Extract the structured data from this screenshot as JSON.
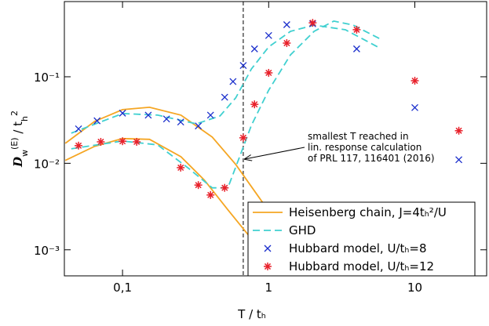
{
  "chart_data": {
    "type": "line",
    "xlabel": "T / tₕ",
    "ylabel": [
      {
        "text": "D",
        "shift": "base"
      },
      {
        "text": "w",
        "shift": "sub"
      },
      {
        "text": "(E)",
        "shift": "super"
      },
      {
        "text": " / t",
        "shift": "base"
      },
      {
        "text": "h",
        "shift": "sub"
      },
      {
        "text": "2",
        "shift": "super"
      }
    ],
    "xscale": "log",
    "yscale": "log",
    "xlim": [
      0.04,
      31
    ],
    "ylim": [
      0.0005,
      0.74
    ],
    "xticks": [
      {
        "value": 0.1,
        "label": "0,1"
      },
      1,
      10
    ],
    "yticks": [
      {
        "value": 0.001,
        "label": "10⁻³"
      },
      {
        "value": 0.01,
        "label": "10⁻²"
      },
      {
        "value": 0.1,
        "label": "10⁻¹"
      }
    ],
    "legend": "lower right",
    "vline": 0.67,
    "annotation": [
      "smallest T reached in",
      "lin. response calculation",
      "of PRL 117, 116401 (2016)"
    ],
    "series": [
      {
        "name": "Heisenberg chain, J=4tₕ²/U",
        "color": "#f5a623",
        "style": "solid",
        "x": [
          0.0406,
          0.0645,
          0.1,
          0.153,
          0.251,
          0.411,
          0.595,
          0.862,
          1.249,
          2.045
        ],
        "values": [
          0.017,
          0.0305,
          0.0417,
          0.0444,
          0.036,
          0.0201,
          0.0097,
          0.004,
          0.00165,
          0.0005
        ]
      },
      {
        "color": "#f5a623",
        "style": "solid",
        "x": [
          0.0406,
          0.0645,
          0.1,
          0.153,
          0.251,
          0.363,
          0.526,
          0.762,
          1.104,
          1.328
        ],
        "values": [
          0.0108,
          0.0157,
          0.0193,
          0.0189,
          0.0119,
          0.0064,
          0.0029,
          0.00134,
          0.00067,
          0.0005
        ]
      },
      {
        "name": "GHD",
        "color": "#40d0d0",
        "style": "dashed",
        "x": [
          0.0446,
          0.1,
          0.174,
          0.321,
          0.465,
          0.595,
          0.762,
          1,
          1.41,
          2.045,
          3.35,
          5.84
        ],
        "values": [
          0.0223,
          0.0376,
          0.036,
          0.0286,
          0.0353,
          0.057,
          0.123,
          0.221,
          0.335,
          0.396,
          0.349,
          0.212
        ]
      },
      {
        "color": "#40d0d0",
        "style": "dashed",
        "x": [
          0.0446,
          0.1,
          0.174,
          0.284,
          0.411,
          0.526,
          0.633,
          0.762,
          1,
          1.41,
          2.045,
          2.79,
          3.79,
          5.84
        ],
        "values": [
          0.0147,
          0.0181,
          0.0163,
          0.0087,
          0.0052,
          0.0052,
          0.0119,
          0.0275,
          0.07,
          0.179,
          0.335,
          0.44,
          0.396,
          0.272
        ]
      },
      {
        "name": "Hubbard model, U/tₕ=8",
        "color": "#1a2ecc",
        "style": "x",
        "x": [
          0.05,
          0.067,
          0.1,
          0.15,
          0.2,
          0.25,
          0.33,
          0.4,
          0.5,
          0.57,
          0.67,
          0.8,
          1,
          1.33,
          2,
          4,
          10,
          20
        ],
        "values": [
          0.025,
          0.031,
          0.038,
          0.036,
          0.0325,
          0.03,
          0.027,
          0.036,
          0.058,
          0.088,
          0.135,
          0.21,
          0.3,
          0.4,
          0.41,
          0.21,
          0.044,
          0.011
        ]
      },
      {
        "name": "Hubbard model, U/tₕ=12",
        "color": "#e8202a",
        "style": "star",
        "x": [
          0.05,
          0.071,
          0.1,
          0.125,
          0.25,
          0.33,
          0.4,
          0.5,
          0.67,
          0.8,
          1,
          1.33,
          2,
          4,
          10,
          20
        ],
        "values": [
          0.016,
          0.0177,
          0.018,
          0.0177,
          0.0089,
          0.0056,
          0.0043,
          0.0052,
          0.0197,
          0.048,
          0.111,
          0.245,
          0.42,
          0.35,
          0.09,
          0.0238
        ]
      }
    ]
  }
}
